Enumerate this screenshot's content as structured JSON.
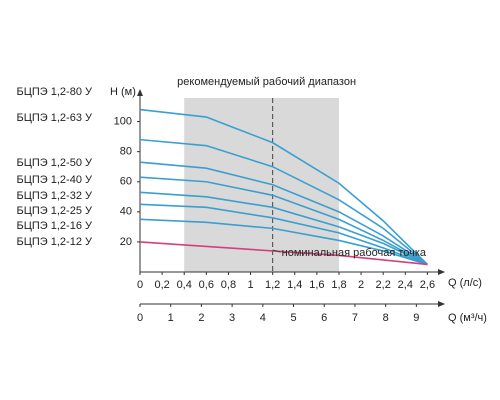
{
  "chart_data": {
    "type": "line",
    "y_label": "H (м)",
    "x_label": "Q (л/с)",
    "x2_label": "Q (м³/ч)",
    "range_label": "рекомендуемый рабочий диапазон",
    "point_label": "номинальная рабочая точка",
    "range": [
      0.4,
      1.8
    ],
    "nominal_q": 1.2,
    "range_color": "#d9d9d9",
    "x": [
      0,
      0.6,
      1.2,
      1.8,
      2.2,
      2.6
    ],
    "series": [
      {
        "name": "БЦПЭ 1,2-80 У",
        "color": "#3a9fd0",
        "values": [
          108,
          103,
          86,
          59,
          34,
          5
        ]
      },
      {
        "name": "БЦПЭ 1,2-63 У",
        "color": "#3a9fd0",
        "values": [
          88,
          84,
          70,
          48,
          29,
          5
        ]
      },
      {
        "name": "БЦПЭ 1,2-50 У",
        "color": "#3a9fd0",
        "values": [
          73,
          69,
          58,
          40,
          24,
          5
        ]
      },
      {
        "name": "БЦПЭ 1,2-40 У",
        "color": "#3a9fd0",
        "values": [
          63,
          60,
          51,
          35,
          21,
          5
        ]
      },
      {
        "name": "БЦПЭ 1,2-32 У",
        "color": "#3a9fd0",
        "values": [
          53,
          50,
          43,
          30,
          19,
          5
        ]
      },
      {
        "name": "БЦПЭ 1,2-25 У",
        "color": "#3a9fd0",
        "values": [
          45,
          43,
          36,
          26,
          16,
          5
        ]
      },
      {
        "name": "БЦПЭ 1,2-16 У",
        "color": "#3a9fd0",
        "values": [
          35,
          33,
          29,
          21,
          14,
          5
        ]
      },
      {
        "name": "БЦПЭ 1,2-12 У",
        "color": "#d4407c",
        "values": [
          20,
          17,
          14,
          11,
          8,
          5
        ]
      }
    ],
    "xlim": [
      0,
      2.75
    ],
    "ylim": [
      0,
      117
    ],
    "x2lim": [
      0,
      9.9
    ],
    "yticks": [
      20,
      40,
      60,
      80,
      100
    ],
    "xticks": [
      0,
      {
        "value": 0.2,
        "label": "0,2"
      },
      {
        "value": 0.4,
        "label": "0,4"
      },
      {
        "value": 0.6,
        "label": "0,6"
      },
      {
        "value": 0.8,
        "label": "0,8"
      },
      1,
      {
        "value": 1.2,
        "label": "1,2"
      },
      {
        "value": 1.4,
        "label": "1,4"
      },
      {
        "value": 1.6,
        "label": "1,6"
      },
      {
        "value": 1.8,
        "label": "1,8"
      },
      2,
      {
        "value": 2.2,
        "label": "2,2"
      },
      {
        "value": 2.4,
        "label": "2,4"
      },
      {
        "value": 2.6,
        "label": "2,6"
      }
    ],
    "x2ticks": [
      0,
      1,
      2,
      3,
      4,
      5,
      6,
      7,
      8,
      9
    ]
  }
}
